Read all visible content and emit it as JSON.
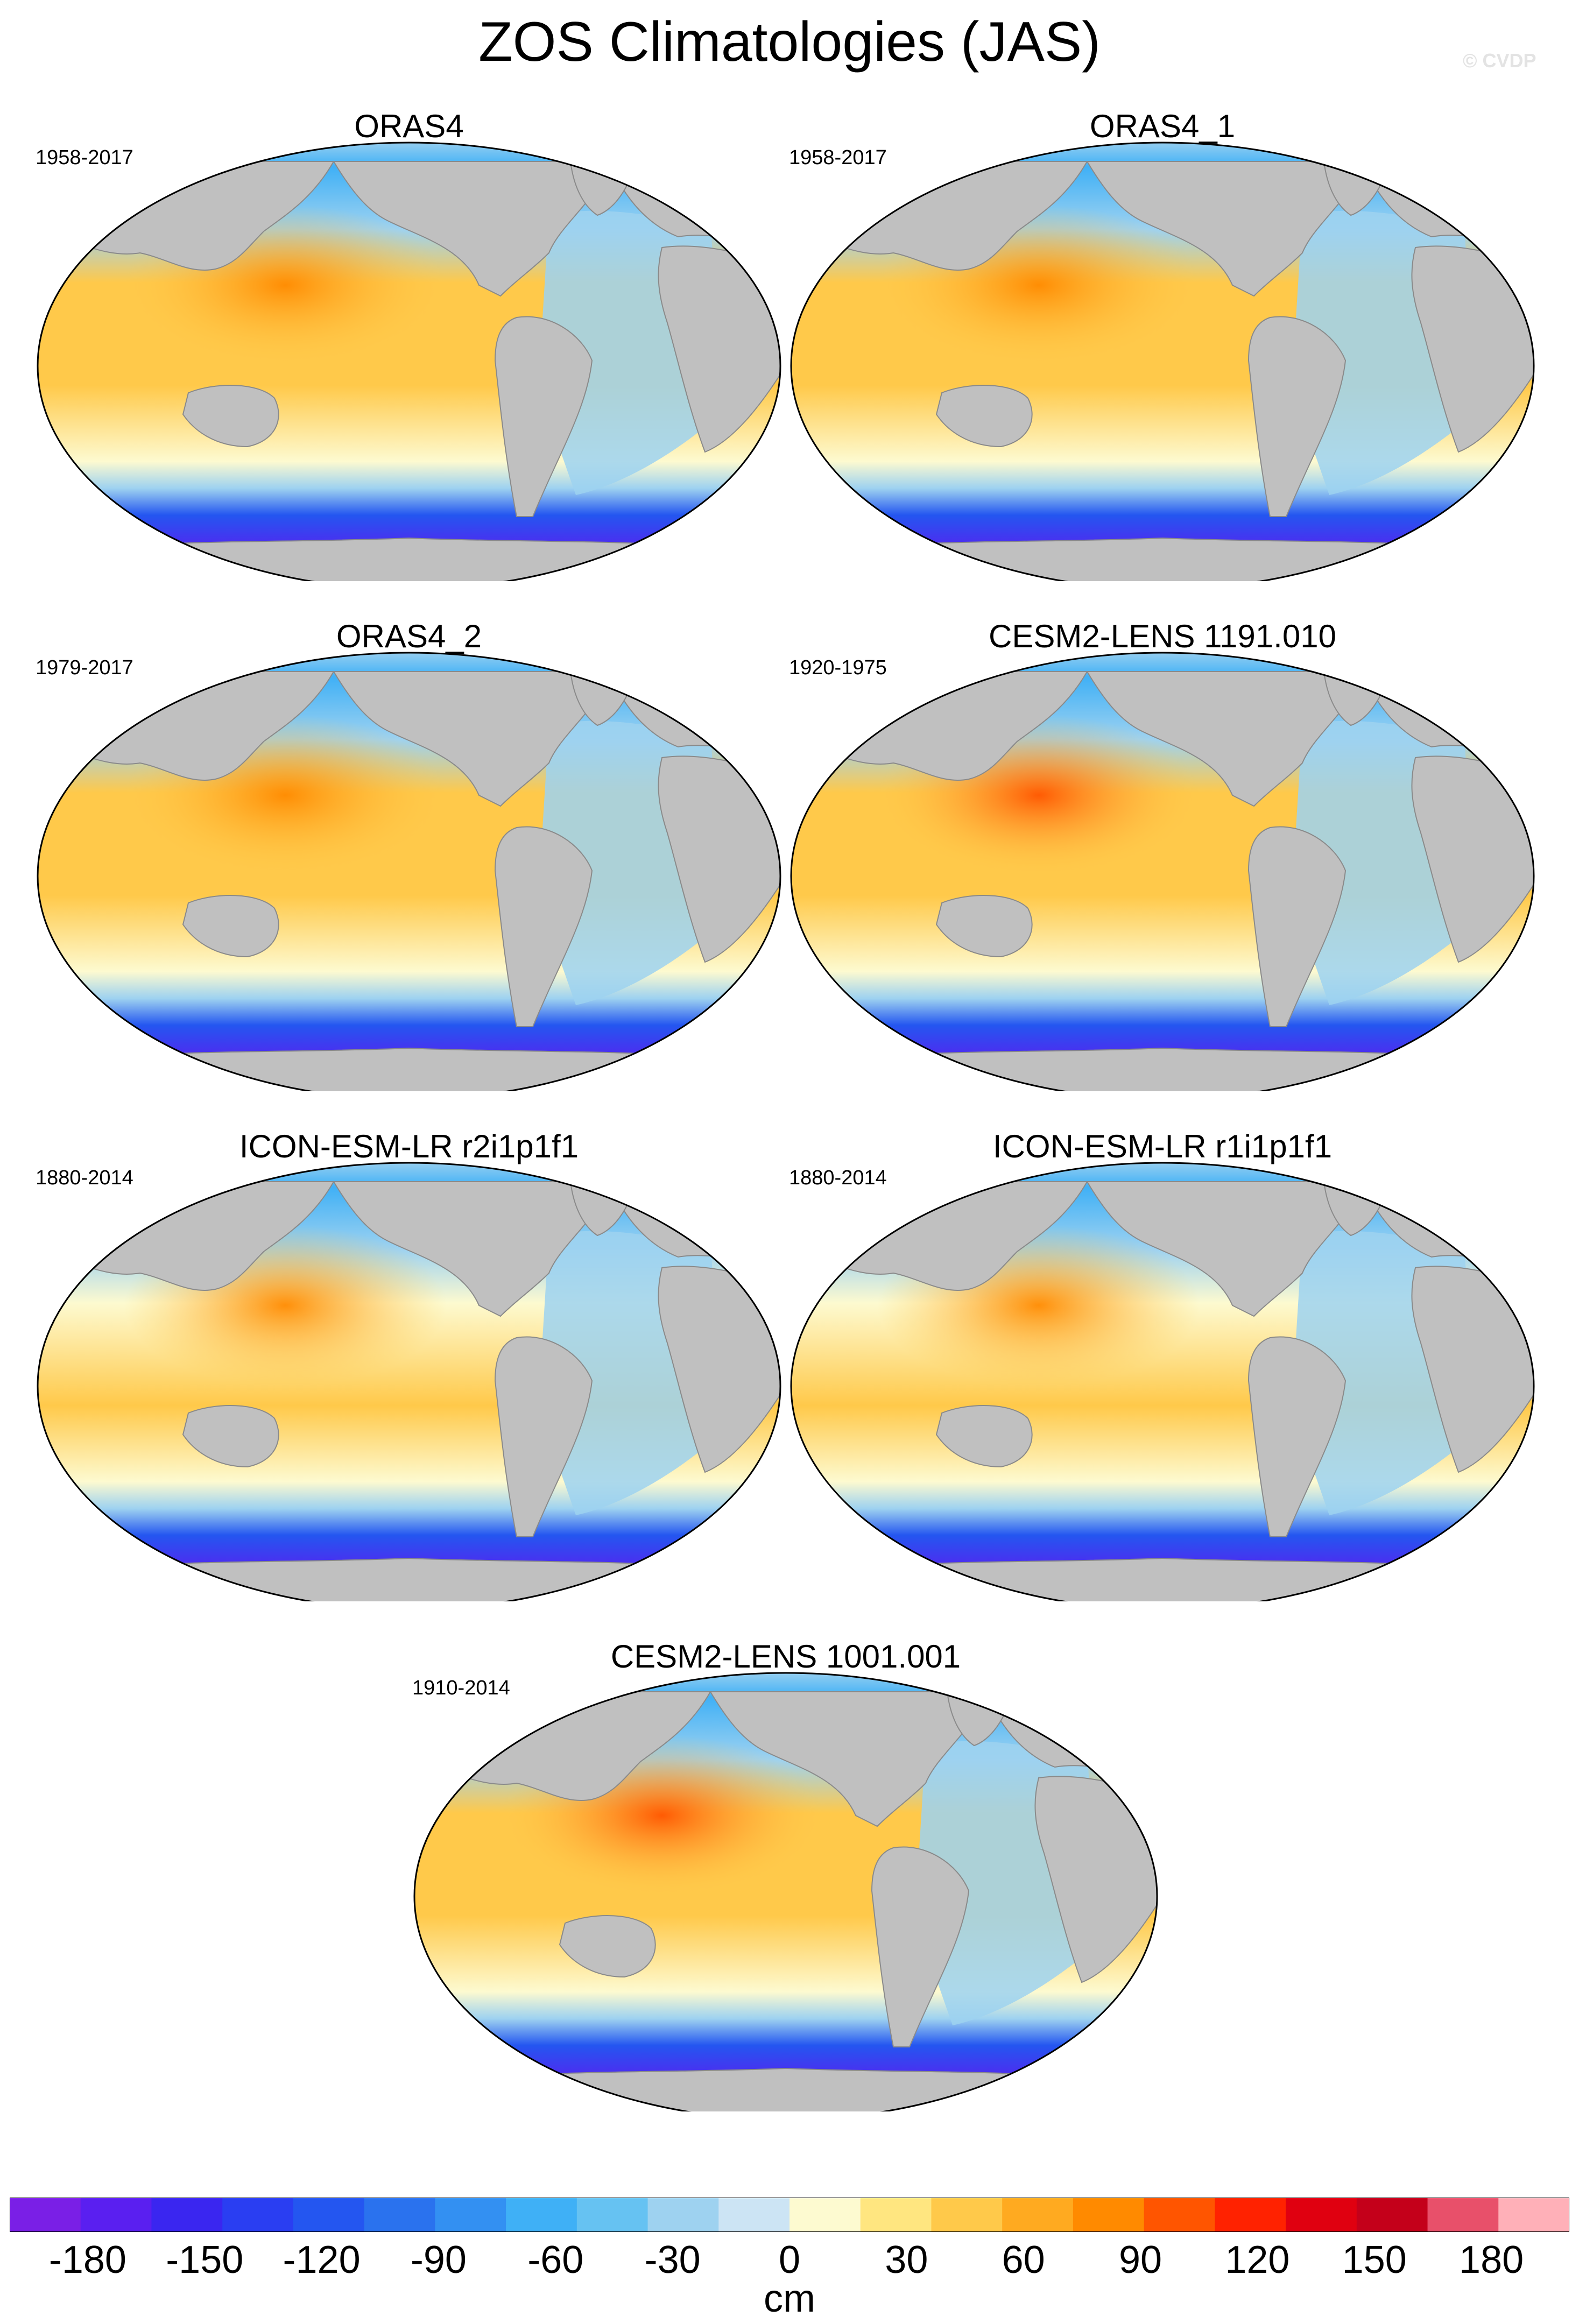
{
  "title": "ZOS Climatologies (JAS)",
  "credit": "© CVDP",
  "panels": [
    {
      "title": "ORAS4",
      "years": "1958-2017",
      "variant": "oras"
    },
    {
      "title": "ORAS4_1",
      "years": "1958-2017",
      "variant": "oras"
    },
    {
      "title": "ORAS4_2",
      "years": "1979-2017",
      "variant": "oras"
    },
    {
      "title": "CESM2-LENS 1191.010",
      "years": "1920-1975",
      "variant": "cesm"
    },
    {
      "title": "ICON-ESM-LR r2i1p1f1",
      "years": "1880-2014",
      "variant": "icon"
    },
    {
      "title": "ICON-ESM-LR r1i1p1f1",
      "years": "1880-2014",
      "variant": "icon"
    },
    {
      "title": "CESM2-LENS 1001.001",
      "years": "1910-2014",
      "variant": "cesm"
    }
  ],
  "colorbar": {
    "units": "cm",
    "min": -200,
    "max": 200,
    "ticks": [
      "-180",
      "-150",
      "-120",
      "-90",
      "-60",
      "-30",
      "0",
      "30",
      "60",
      "90",
      "120",
      "150",
      "180"
    ],
    "tick_values": [
      -180,
      -150,
      -120,
      -90,
      -60,
      -30,
      0,
      30,
      60,
      90,
      120,
      150,
      180
    ],
    "colors": [
      "#7a1fe6",
      "#5a1ff0",
      "#3a26f0",
      "#2a3ef2",
      "#2456f0",
      "#2a72ee",
      "#3390f2",
      "#3fb0f6",
      "#66c2f2",
      "#9ed2f0",
      "#cce4f4",
      "#fdfad0",
      "#ffe680",
      "#ffc94a",
      "#ffaa20",
      "#ff8a00",
      "#ff5500",
      "#ff2200",
      "#e00010",
      "#c4001a",
      "#e8506a",
      "#ffb0b8"
    ]
  },
  "map_colors": {
    "land": "#c0c0c0",
    "ocean_warm": "#ffc94a",
    "ocean_hot": "#ff8a00",
    "ocean_cool": "#9ed2f0",
    "ocean_cold": "#2456f0",
    "ocean_coldest": "#5a1ff0"
  }
}
